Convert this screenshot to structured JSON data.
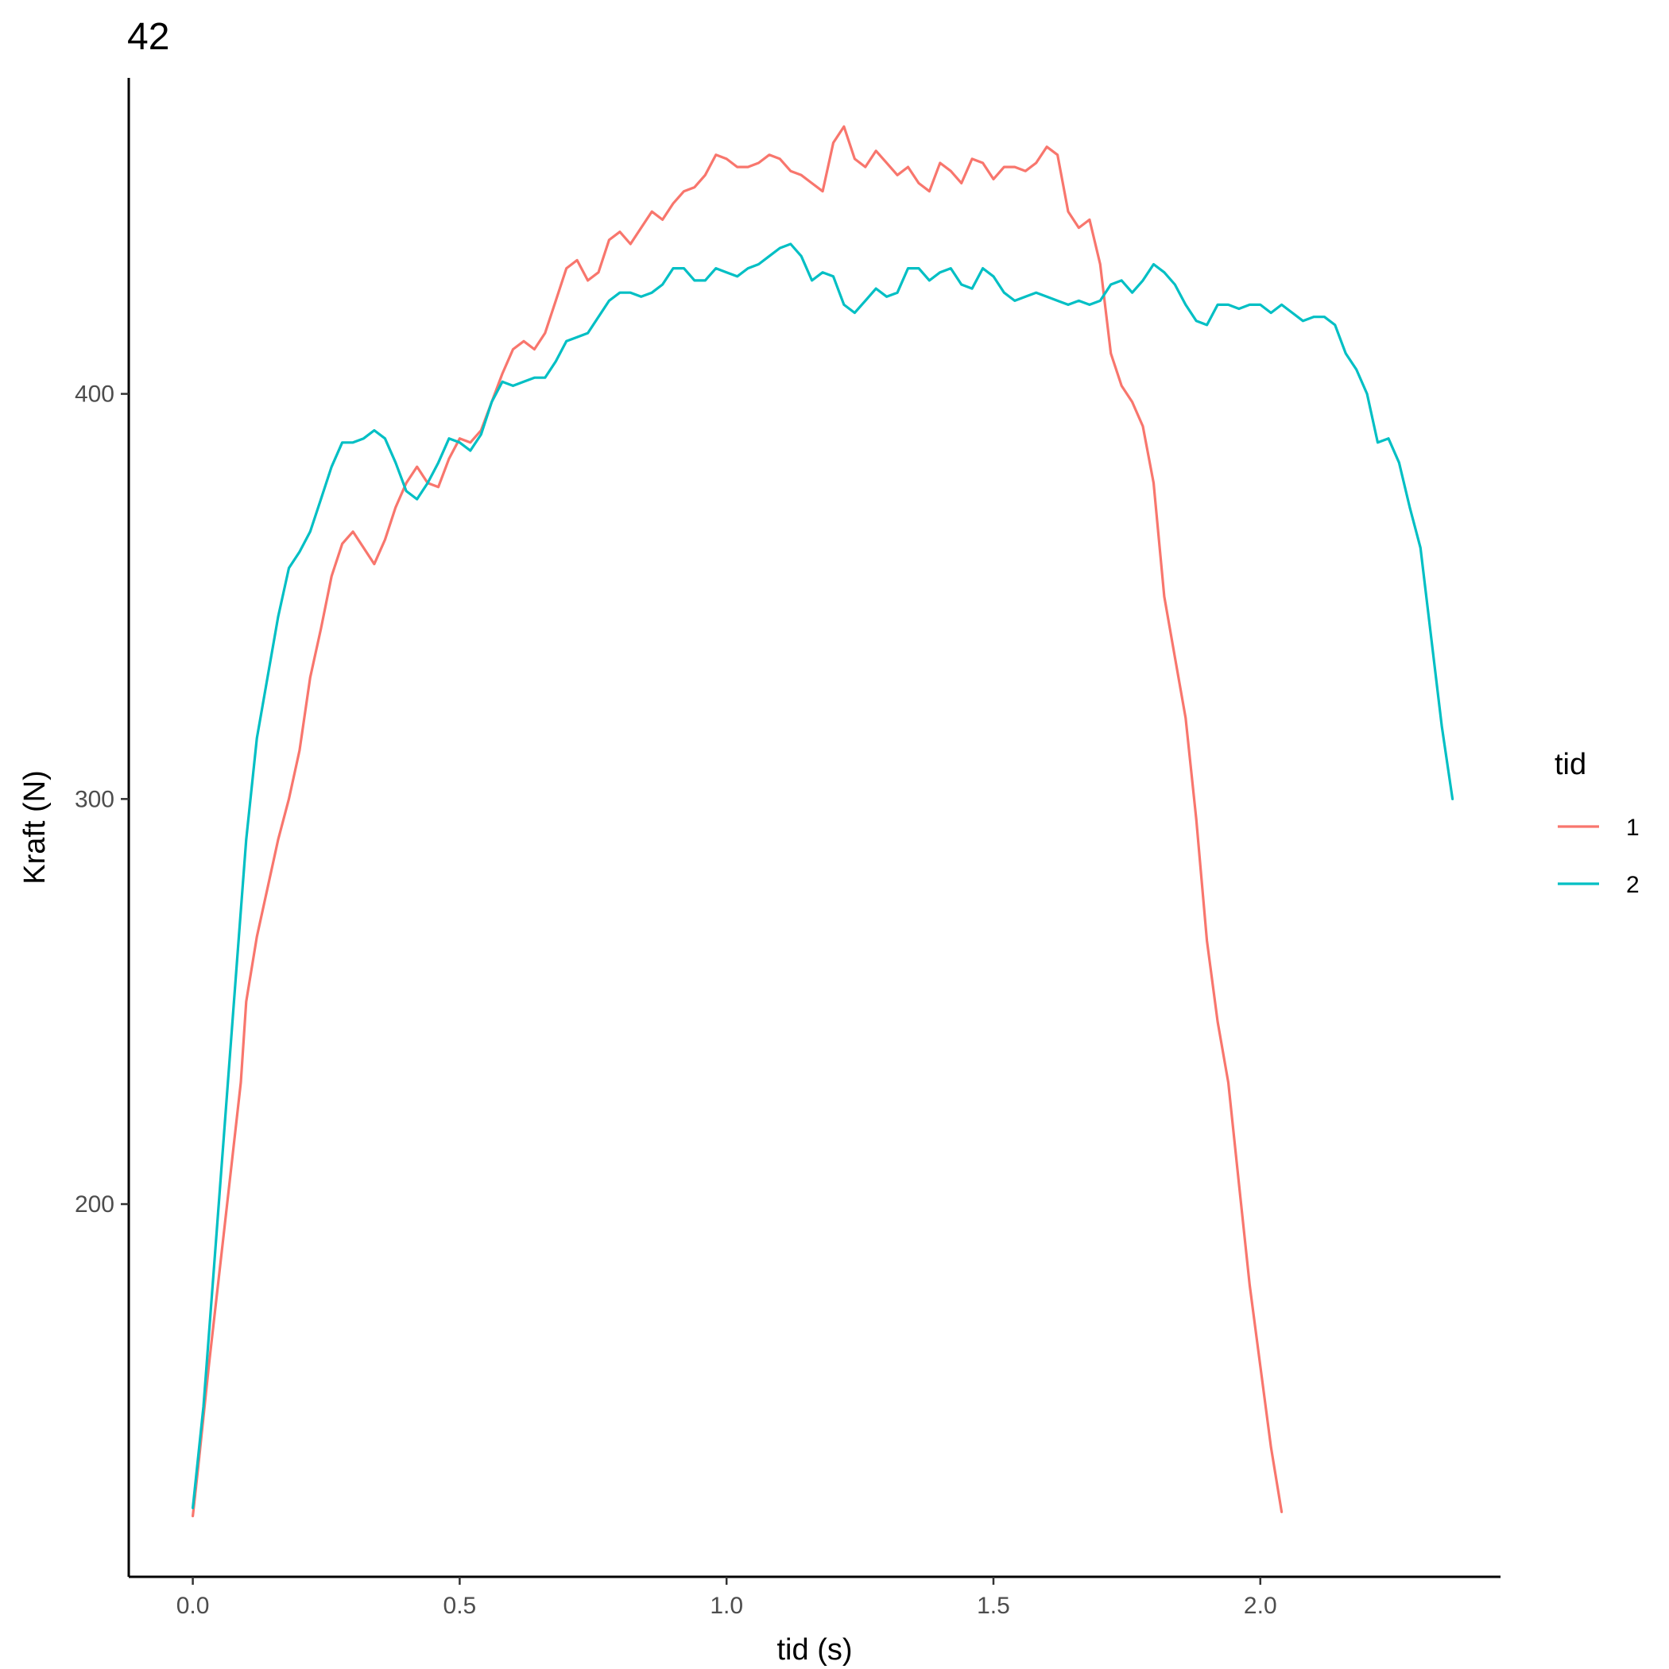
{
  "chart_data": {
    "type": "line",
    "title": "42",
    "xlabel": "tid (s)",
    "ylabel": "Kraft (N)",
    "xlim": [
      -0.12,
      2.45
    ],
    "ylim": [
      108,
      478
    ],
    "xticks": [
      0.0,
      0.5,
      1.0,
      1.5,
      2.0
    ],
    "xtick_labels": [
      "0.0",
      "0.5",
      "1.0",
      "1.5",
      "2.0"
    ],
    "yticks": [
      200,
      300,
      400
    ],
    "ytick_labels": [
      "200",
      "300",
      "400"
    ],
    "grid": false,
    "legend": {
      "title": "tid",
      "position": "right"
    },
    "series": [
      {
        "name": "1",
        "color": "#F8766D",
        "points": [
          [
            0.0,
            123
          ],
          [
            0.01,
            135
          ],
          [
            0.03,
            160
          ],
          [
            0.06,
            195
          ],
          [
            0.09,
            230
          ],
          [
            0.1,
            250
          ],
          [
            0.12,
            266
          ],
          [
            0.14,
            278
          ],
          [
            0.16,
            290
          ],
          [
            0.18,
            300
          ],
          [
            0.2,
            312
          ],
          [
            0.22,
            330
          ],
          [
            0.24,
            342
          ],
          [
            0.26,
            355
          ],
          [
            0.28,
            363
          ],
          [
            0.3,
            366
          ],
          [
            0.32,
            362
          ],
          [
            0.34,
            358
          ],
          [
            0.36,
            364
          ],
          [
            0.38,
            372
          ],
          [
            0.4,
            378
          ],
          [
            0.42,
            382
          ],
          [
            0.44,
            378
          ],
          [
            0.46,
            377
          ],
          [
            0.48,
            384
          ],
          [
            0.5,
            389
          ],
          [
            0.52,
            388
          ],
          [
            0.54,
            391
          ],
          [
            0.56,
            398
          ],
          [
            0.58,
            405
          ],
          [
            0.6,
            411
          ],
          [
            0.62,
            413
          ],
          [
            0.64,
            411
          ],
          [
            0.66,
            415
          ],
          [
            0.68,
            423
          ],
          [
            0.7,
            431
          ],
          [
            0.72,
            433
          ],
          [
            0.74,
            428
          ],
          [
            0.76,
            430
          ],
          [
            0.78,
            438
          ],
          [
            0.8,
            440
          ],
          [
            0.82,
            437
          ],
          [
            0.84,
            441
          ],
          [
            0.86,
            445
          ],
          [
            0.88,
            443
          ],
          [
            0.9,
            447
          ],
          [
            0.92,
            450
          ],
          [
            0.94,
            451
          ],
          [
            0.96,
            454
          ],
          [
            0.98,
            459
          ],
          [
            1.0,
            458
          ],
          [
            1.02,
            456
          ],
          [
            1.04,
            456
          ],
          [
            1.06,
            457
          ],
          [
            1.08,
            459
          ],
          [
            1.1,
            458
          ],
          [
            1.12,
            455
          ],
          [
            1.14,
            454
          ],
          [
            1.16,
            452
          ],
          [
            1.18,
            450
          ],
          [
            1.2,
            462
          ],
          [
            1.22,
            466
          ],
          [
            1.24,
            458
          ],
          [
            1.26,
            456
          ],
          [
            1.28,
            460
          ],
          [
            1.3,
            457
          ],
          [
            1.32,
            454
          ],
          [
            1.34,
            456
          ],
          [
            1.36,
            452
          ],
          [
            1.38,
            450
          ],
          [
            1.4,
            457
          ],
          [
            1.42,
            455
          ],
          [
            1.44,
            452
          ],
          [
            1.46,
            458
          ],
          [
            1.48,
            457
          ],
          [
            1.5,
            453
          ],
          [
            1.52,
            456
          ],
          [
            1.54,
            456
          ],
          [
            1.56,
            455
          ],
          [
            1.58,
            457
          ],
          [
            1.6,
            461
          ],
          [
            1.62,
            459
          ],
          [
            1.64,
            445
          ],
          [
            1.66,
            441
          ],
          [
            1.68,
            443
          ],
          [
            1.7,
            432
          ],
          [
            1.72,
            410
          ],
          [
            1.74,
            402
          ],
          [
            1.76,
            398
          ],
          [
            1.78,
            392
          ],
          [
            1.8,
            378
          ],
          [
            1.82,
            350
          ],
          [
            1.84,
            335
          ],
          [
            1.86,
            320
          ],
          [
            1.88,
            295
          ],
          [
            1.9,
            265
          ],
          [
            1.92,
            245
          ],
          [
            1.94,
            230
          ],
          [
            1.96,
            205
          ],
          [
            1.98,
            180
          ],
          [
            2.0,
            160
          ],
          [
            2.02,
            140
          ],
          [
            2.04,
            124
          ]
        ]
      },
      {
        "name": "2",
        "color": "#00BFC4",
        "points": [
          [
            0.0,
            125
          ],
          [
            0.02,
            150
          ],
          [
            0.04,
            185
          ],
          [
            0.06,
            220
          ],
          [
            0.08,
            255
          ],
          [
            0.1,
            290
          ],
          [
            0.12,
            315
          ],
          [
            0.14,
            330
          ],
          [
            0.16,
            345
          ],
          [
            0.18,
            357
          ],
          [
            0.2,
            361
          ],
          [
            0.22,
            366
          ],
          [
            0.24,
            374
          ],
          [
            0.26,
            382
          ],
          [
            0.28,
            388
          ],
          [
            0.3,
            388
          ],
          [
            0.32,
            389
          ],
          [
            0.34,
            391
          ],
          [
            0.36,
            389
          ],
          [
            0.38,
            383
          ],
          [
            0.4,
            376
          ],
          [
            0.42,
            374
          ],
          [
            0.44,
            378
          ],
          [
            0.46,
            383
          ],
          [
            0.48,
            389
          ],
          [
            0.5,
            388
          ],
          [
            0.52,
            386
          ],
          [
            0.54,
            390
          ],
          [
            0.56,
            398
          ],
          [
            0.58,
            403
          ],
          [
            0.6,
            402
          ],
          [
            0.62,
            403
          ],
          [
            0.64,
            404
          ],
          [
            0.66,
            404
          ],
          [
            0.68,
            408
          ],
          [
            0.7,
            413
          ],
          [
            0.72,
            414
          ],
          [
            0.74,
            415
          ],
          [
            0.76,
            419
          ],
          [
            0.78,
            423
          ],
          [
            0.8,
            425
          ],
          [
            0.82,
            425
          ],
          [
            0.84,
            424
          ],
          [
            0.86,
            425
          ],
          [
            0.88,
            427
          ],
          [
            0.9,
            431
          ],
          [
            0.92,
            431
          ],
          [
            0.94,
            428
          ],
          [
            0.96,
            428
          ],
          [
            0.98,
            431
          ],
          [
            1.0,
            430
          ],
          [
            1.02,
            429
          ],
          [
            1.04,
            431
          ],
          [
            1.06,
            432
          ],
          [
            1.08,
            434
          ],
          [
            1.1,
            436
          ],
          [
            1.12,
            437
          ],
          [
            1.14,
            434
          ],
          [
            1.16,
            428
          ],
          [
            1.18,
            430
          ],
          [
            1.2,
            429
          ],
          [
            1.22,
            422
          ],
          [
            1.24,
            420
          ],
          [
            1.26,
            423
          ],
          [
            1.28,
            426
          ],
          [
            1.3,
            424
          ],
          [
            1.32,
            425
          ],
          [
            1.34,
            431
          ],
          [
            1.36,
            431
          ],
          [
            1.38,
            428
          ],
          [
            1.4,
            430
          ],
          [
            1.42,
            431
          ],
          [
            1.44,
            427
          ],
          [
            1.46,
            426
          ],
          [
            1.48,
            431
          ],
          [
            1.5,
            429
          ],
          [
            1.52,
            425
          ],
          [
            1.54,
            423
          ],
          [
            1.56,
            424
          ],
          [
            1.58,
            425
          ],
          [
            1.6,
            424
          ],
          [
            1.62,
            423
          ],
          [
            1.64,
            422
          ],
          [
            1.66,
            423
          ],
          [
            1.68,
            422
          ],
          [
            1.7,
            423
          ],
          [
            1.72,
            427
          ],
          [
            1.74,
            428
          ],
          [
            1.76,
            425
          ],
          [
            1.78,
            428
          ],
          [
            1.8,
            432
          ],
          [
            1.82,
            430
          ],
          [
            1.84,
            427
          ],
          [
            1.86,
            422
          ],
          [
            1.88,
            418
          ],
          [
            1.9,
            417
          ],
          [
            1.92,
            422
          ],
          [
            1.94,
            422
          ],
          [
            1.96,
            421
          ],
          [
            1.98,
            422
          ],
          [
            2.0,
            422
          ],
          [
            2.02,
            420
          ],
          [
            2.04,
            422
          ],
          [
            2.06,
            420
          ],
          [
            2.08,
            418
          ],
          [
            2.1,
            419
          ],
          [
            2.12,
            419
          ],
          [
            2.14,
            417
          ],
          [
            2.16,
            410
          ],
          [
            2.18,
            406
          ],
          [
            2.2,
            400
          ],
          [
            2.22,
            388
          ],
          [
            2.24,
            389
          ],
          [
            2.26,
            383
          ],
          [
            2.28,
            372
          ],
          [
            2.3,
            362
          ],
          [
            2.32,
            340
          ],
          [
            2.34,
            318
          ],
          [
            2.36,
            300
          ]
        ]
      }
    ]
  }
}
